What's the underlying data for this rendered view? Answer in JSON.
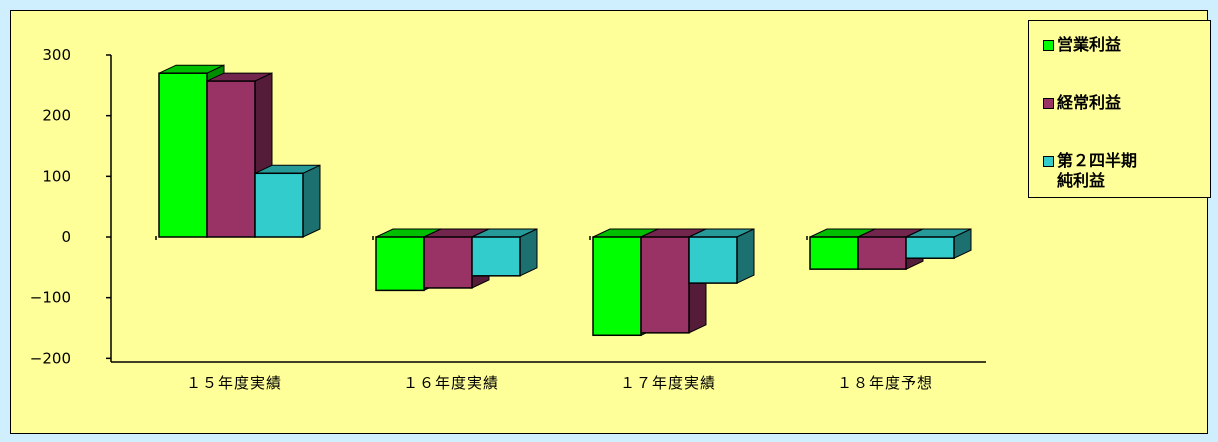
{
  "chart_data": {
    "type": "bar",
    "title": "",
    "xlabel": "",
    "ylabel": "",
    "categories": [
      "１５年度実績",
      "１６年度実績",
      "１７年度実績",
      "１８年度予想"
    ],
    "series": [
      {
        "name": "営業利益",
        "color": "#00ff00",
        "values": [
          270,
          -88,
          -162,
          -53
        ]
      },
      {
        "name": "経常利益",
        "color": "#993366",
        "values": [
          257,
          -84,
          -158,
          -53
        ]
      },
      {
        "name": "第２四半期\n純利益",
        "color": "#33cccc",
        "values": [
          105,
          -64,
          -76,
          -35
        ]
      }
    ],
    "ylim": [
      -200,
      300
    ],
    "yticks": [
      "300",
      "200",
      "100",
      "0",
      "−100",
      "−200"
    ],
    "ytick_values": [
      300,
      200,
      100,
      0,
      -100,
      -200
    ],
    "legend_position": "right",
    "grid": false,
    "style": "3d-clustered-column"
  }
}
